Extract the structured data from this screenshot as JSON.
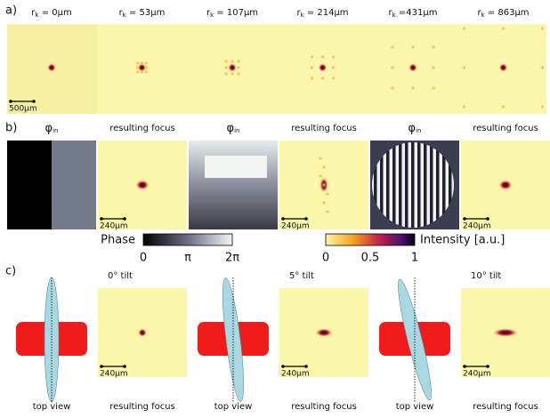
{
  "panel_a": {
    "label": "a)",
    "columns": [
      {
        "symbol": "r",
        "subscript": "k",
        "value": " = 0µm"
      },
      {
        "symbol": "r",
        "subscript": "k",
        "value": " = 53µm"
      },
      {
        "symbol": "r",
        "subscript": "k",
        "value": " = 107µm"
      },
      {
        "symbol": "r",
        "subscript": "k",
        "value": " = 214µm"
      },
      {
        "symbol": "r",
        "subscript": "k",
        "value": " =431µm"
      },
      {
        "symbol": "r",
        "subscript": "k",
        "value": " = 863µm"
      }
    ],
    "scale_bar": "500µm"
  },
  "panel_b": {
    "label": "b)",
    "titles": [
      {
        "symbol": "φ",
        "subscript": "in"
      },
      "resulting focus",
      {
        "symbol": "φ",
        "subscript": "in"
      },
      "resulting focus",
      {
        "symbol": "φ",
        "subscript": "in"
      },
      "resulting focus"
    ],
    "scale_bars": [
      "240µm",
      "240µm",
      "240µm"
    ],
    "phase_colorbar": {
      "label": "Phase",
      "ticks": [
        "0",
        "π",
        "2π"
      ]
    },
    "intensity_colorbar": {
      "label": "Intensity [a.u.]",
      "ticks": [
        "0",
        "0.5",
        "1"
      ]
    }
  },
  "panel_c": {
    "label": "c)",
    "tilts": [
      "0° tilt",
      "5° tilt",
      "10° tilt"
    ],
    "captions": [
      "top view",
      "resulting focus",
      "top view",
      "resulting focus",
      "top view",
      "resulting focus"
    ],
    "scale_bars": [
      "240µm",
      "240µm",
      "240µm"
    ]
  }
}
